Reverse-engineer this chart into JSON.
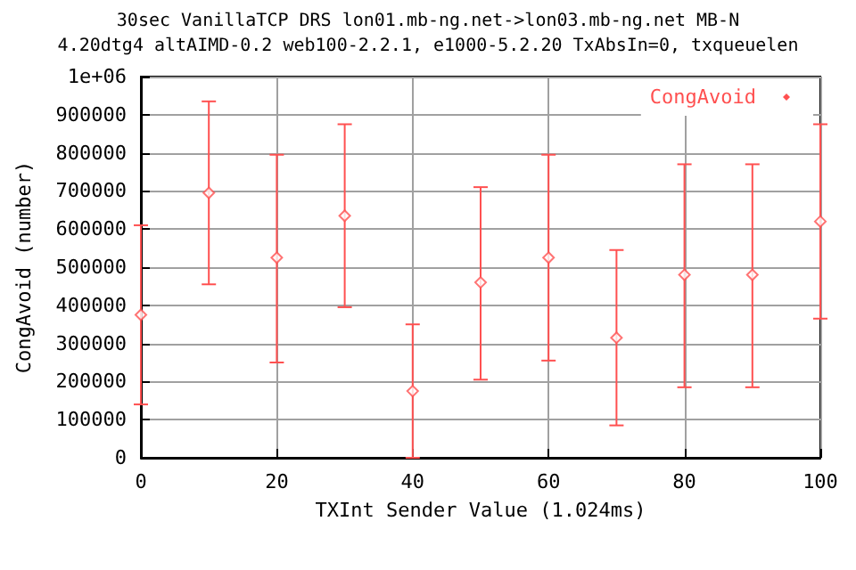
{
  "chart_data": {
    "type": "scatter",
    "title": "30sec VanillaTCP DRS lon01.mb-ng.net->lon03.mb-ng.net MB-N",
    "subtitle": "4.20dtg4 altAIMD-0.2 web100-2.2.1, e1000-5.2.20 TxAbsIn=0, txqueuelen",
    "xlabel": "TXInt Sender Value (1.024ms)",
    "ylabel": "CongAvoid (number)",
    "x": [
      0,
      10,
      20,
      30,
      40,
      50,
      60,
      70,
      80,
      90,
      100
    ],
    "series": [
      {
        "name": "CongAvoid",
        "color": "#ff5050",
        "values": [
          375000,
          695000,
          525000,
          635000,
          175000,
          460000,
          525000,
          315000,
          480000,
          480000,
          620000
        ],
        "errors": [
          [
            140000,
            610000
          ],
          [
            455000,
            935000
          ],
          [
            250000,
            795000
          ],
          [
            395000,
            875000
          ],
          [
            0,
            350000
          ],
          [
            205000,
            710000
          ],
          [
            255000,
            795000
          ],
          [
            85000,
            545000
          ],
          [
            185000,
            770000
          ],
          [
            185000,
            770000
          ],
          [
            365000,
            875000
          ]
        ]
      }
    ],
    "xlim": [
      0,
      100
    ],
    "xticks": [
      0,
      20,
      40,
      60,
      80,
      100
    ],
    "ylim": [
      0,
      1000000
    ],
    "yticks": [
      0,
      100000,
      200000,
      300000,
      400000,
      500000,
      600000,
      700000,
      800000,
      900000,
      {
        "value": 1000000,
        "label": "1e+06"
      }
    ],
    "grid": true,
    "legend": "top right",
    "marker": "diamond"
  }
}
